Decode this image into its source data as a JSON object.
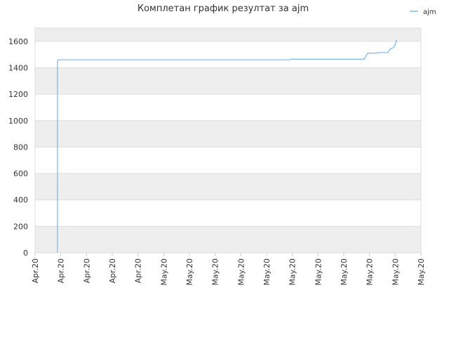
{
  "chart_data": {
    "type": "line",
    "title": "Комплетан график резултат за ajm",
    "x": [
      0.87,
      0.87,
      0.9,
      9.9,
      9.95,
      12.79,
      12.93,
      13.28,
      13.34,
      13.72,
      13.8,
      13.91,
      13.99,
      14.05
    ],
    "series": [
      {
        "name": "ajm",
        "color": "#7cb5ec",
        "values": [
          0,
          1450,
          1460,
          1460,
          1465,
          1465,
          1510,
          1510,
          1515,
          1515,
          1540,
          1550,
          1570,
          1610
        ]
      }
    ],
    "xlim": [
      0,
      15
    ],
    "xticks": [
      {
        "value": 0,
        "label": "Apr.20"
      },
      {
        "value": 1,
        "label": "Apr.20"
      },
      {
        "value": 2,
        "label": "Apr.20"
      },
      {
        "value": 3,
        "label": "Apr.20"
      },
      {
        "value": 4,
        "label": "Apr.20"
      },
      {
        "value": 5,
        "label": "May.20"
      },
      {
        "value": 6,
        "label": "May.20"
      },
      {
        "value": 7,
        "label": "May.20"
      },
      {
        "value": 8,
        "label": "May.20"
      },
      {
        "value": 9,
        "label": "May.20"
      },
      {
        "value": 10,
        "label": "May.20"
      },
      {
        "value": 11,
        "label": "May.20"
      },
      {
        "value": 12,
        "label": "May.20"
      },
      {
        "value": 13,
        "label": "May.20"
      },
      {
        "value": 14,
        "label": "May.20"
      },
      {
        "value": 15,
        "label": "May.20"
      }
    ],
    "ylim": [
      0,
      1700
    ],
    "yticks": [
      0,
      200,
      400,
      600,
      800,
      1000,
      1200,
      1400,
      1600
    ],
    "grid": true,
    "legend": "top-right"
  }
}
